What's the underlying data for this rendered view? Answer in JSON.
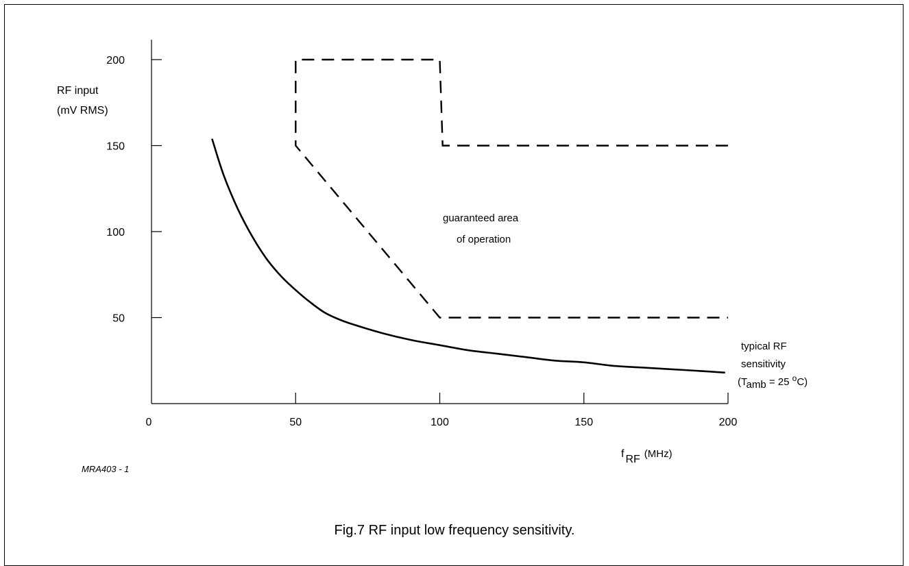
{
  "chart_data": {
    "type": "line",
    "title": "",
    "caption": "Fig.7  RF input low frequency sensitivity.",
    "figure_code": "MRA403 - 1",
    "xlabel": {
      "main": "f",
      "sub": "RF",
      "unit": "(MHz)"
    },
    "ylabel": {
      "line1": "RF input",
      "line2": "(mV RMS)"
    },
    "xlim": [
      0,
      200
    ],
    "ylim": [
      0,
      215
    ],
    "x_ticks": [
      0,
      50,
      100,
      150,
      200
    ],
    "x_tick_labels": [
      "0",
      "50",
      "100",
      "150",
      "200"
    ],
    "y_ticks": [
      50,
      100,
      150,
      200
    ],
    "y_tick_labels": [
      "50",
      "100",
      "150",
      "200"
    ],
    "grid": false,
    "series": [
      {
        "style": "solid",
        "x": [
          21,
          25,
          30,
          35,
          40,
          45,
          50,
          55,
          60,
          65,
          70,
          80,
          90,
          100,
          110,
          120,
          130,
          140,
          150,
          160,
          170,
          180,
          190,
          199
        ],
        "y": [
          154,
          133,
          113,
          97,
          84,
          74,
          66,
          59,
          53,
          49,
          46,
          41,
          37,
          34,
          31,
          29,
          27,
          25,
          24,
          22,
          21,
          20,
          19,
          18
        ]
      },
      {
        "style": "dashed",
        "x": [
          200,
          101,
          101,
          100,
          50,
          50,
          50,
          100,
          100,
          200
        ],
        "y": [
          150,
          150,
          150,
          200,
          200,
          150,
          150,
          50,
          50,
          50
        ]
      }
    ],
    "annotations": {
      "area_line1": "guaranteed area",
      "area_line2": "of operation",
      "curve_line1": "typical RF",
      "curve_line2": "sensitivity",
      "cond_prefix": "(T",
      "cond_sub": "amb",
      "cond_mid": " = 25 ",
      "cond_sup": "o",
      "cond_suffix": "C)"
    }
  }
}
